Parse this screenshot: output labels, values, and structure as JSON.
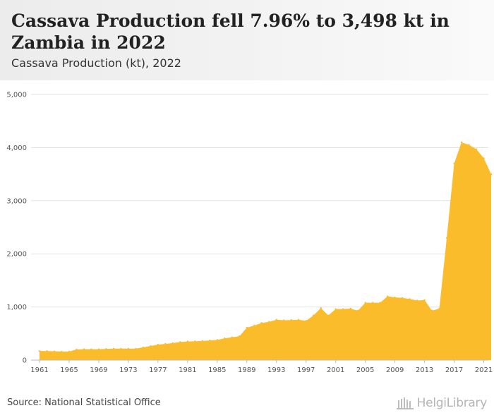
{
  "header": {
    "title": "Cassava Production fell 7.96% to 3,498 kt in Zambia in 2022",
    "subtitle": "Cassava Production (kt), 2022"
  },
  "footer": {
    "source": "Source: National Statistical Office",
    "logo_text": "HelgiLibrary"
  },
  "colors": {
    "area_fill": "#fbbc2c",
    "grid": "#e3e3e3",
    "axis": "#bbbbbb"
  },
  "chart_data": {
    "type": "area",
    "title": "Cassava Production (kt), 2022",
    "xlabel": "",
    "ylabel": "",
    "x": [
      1961,
      1962,
      1963,
      1964,
      1965,
      1966,
      1967,
      1968,
      1969,
      1970,
      1971,
      1972,
      1973,
      1974,
      1975,
      1976,
      1977,
      1978,
      1979,
      1980,
      1981,
      1982,
      1983,
      1984,
      1985,
      1986,
      1987,
      1988,
      1989,
      1990,
      1991,
      1992,
      1993,
      1994,
      1995,
      1996,
      1997,
      1998,
      1999,
      2000,
      2001,
      2002,
      2003,
      2004,
      2005,
      2006,
      2007,
      2008,
      2009,
      2010,
      2011,
      2012,
      2013,
      2014,
      2015,
      2016,
      2017,
      2018,
      2019,
      2020,
      2021,
      2022
    ],
    "values": [
      170,
      170,
      165,
      160,
      160,
      200,
      205,
      205,
      205,
      210,
      215,
      215,
      215,
      215,
      240,
      265,
      290,
      305,
      320,
      340,
      350,
      355,
      360,
      370,
      380,
      410,
      430,
      450,
      610,
      650,
      700,
      720,
      760,
      750,
      755,
      760,
      740,
      840,
      980,
      840,
      960,
      960,
      970,
      930,
      1080,
      1080,
      1080,
      1200,
      1180,
      1170,
      1150,
      1120,
      1130,
      930,
      970,
      2300,
      3700,
      4100,
      4050,
      3970,
      3800,
      3498
    ],
    "xticks": [
      "1961",
      "1965",
      "1969",
      "1973",
      "1977",
      "1981",
      "1985",
      "1989",
      "1993",
      "1997",
      "2001",
      "2005",
      "2009",
      "2013",
      "2017",
      "2021"
    ],
    "yticks": [
      "0",
      "1,000",
      "2,000",
      "3,000",
      "4,000",
      "5,000"
    ],
    "xlim": [
      1961,
      2022
    ],
    "ylim": [
      0,
      5000
    ],
    "grid": true,
    "legend": "none"
  }
}
